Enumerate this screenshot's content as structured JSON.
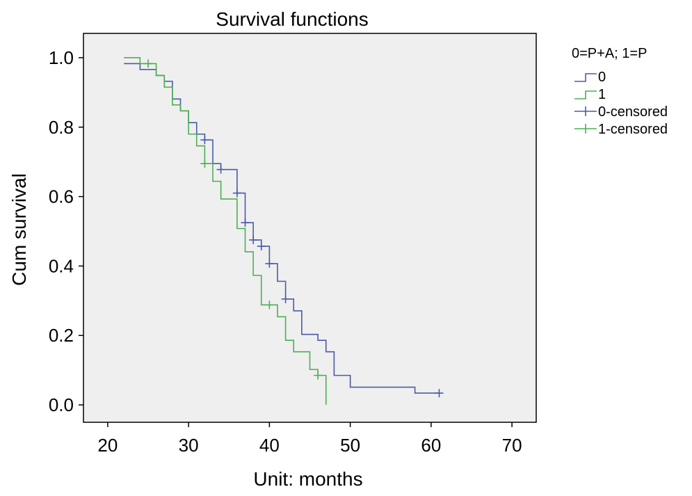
{
  "chart_data": {
    "type": "line",
    "subtype": "kaplan-meier step",
    "title": "Survival functions",
    "xlabel": "Unit: months",
    "ylabel": "Cum survival",
    "xlim": [
      17,
      73
    ],
    "ylim": [
      -0.05,
      1.07
    ],
    "xticks": [
      20,
      30,
      40,
      50,
      60,
      70
    ],
    "xtick_labels": [
      "20",
      "30",
      "40",
      "50",
      "60",
      "70"
    ],
    "yticks": [
      0.0,
      0.2,
      0.4,
      0.6,
      0.8,
      1.0
    ],
    "ytick_labels": [
      "0.0",
      "0.2",
      "0.4",
      "0.6",
      "0.8",
      "1.0"
    ],
    "grid": false,
    "plot_background": "#efefef",
    "legend": {
      "title": "0=P+A; 1=P",
      "placement": "right, outside",
      "entries": [
        "0",
        "1",
        "0-censored",
        "1-censored"
      ]
    },
    "series": [
      {
        "name": "0",
        "color": "#4a5aa8",
        "steps": [
          [
            22,
            0.983
          ],
          [
            24,
            0.966
          ],
          [
            26,
            0.949
          ],
          [
            27,
            0.932
          ],
          [
            28,
            0.881
          ],
          [
            29,
            0.847
          ],
          [
            30,
            0.813
          ],
          [
            31,
            0.78
          ],
          [
            32,
            0.763
          ],
          [
            33,
            0.695
          ],
          [
            34,
            0.678
          ],
          [
            36,
            0.61
          ],
          [
            37,
            0.525
          ],
          [
            38,
            0.475
          ],
          [
            39,
            0.457
          ],
          [
            40,
            0.407
          ],
          [
            41,
            0.356
          ],
          [
            42,
            0.305
          ],
          [
            43,
            0.271
          ],
          [
            44,
            0.203
          ],
          [
            46,
            0.186
          ],
          [
            47,
            0.153
          ],
          [
            48,
            0.085
          ],
          [
            50,
            0.051
          ],
          [
            58,
            0.034
          ],
          [
            61,
            0.034
          ]
        ],
        "censored": [
          [
            32,
            0.763
          ],
          [
            34,
            0.678
          ],
          [
            36,
            0.61
          ],
          [
            37,
            0.525
          ],
          [
            38,
            0.475
          ],
          [
            39,
            0.457
          ],
          [
            40,
            0.407
          ],
          [
            42,
            0.305
          ],
          [
            61,
            0.034
          ]
        ]
      },
      {
        "name": "1",
        "color": "#4caf50",
        "steps": [
          [
            22,
            1.0
          ],
          [
            24,
            0.983
          ],
          [
            26,
            0.949
          ],
          [
            27,
            0.915
          ],
          [
            28,
            0.864
          ],
          [
            29,
            0.847
          ],
          [
            30,
            0.78
          ],
          [
            31,
            0.746
          ],
          [
            32,
            0.695
          ],
          [
            33,
            0.644
          ],
          [
            34,
            0.593
          ],
          [
            36,
            0.508
          ],
          [
            37,
            0.441
          ],
          [
            38,
            0.373
          ],
          [
            39,
            0.288
          ],
          [
            41,
            0.254
          ],
          [
            42,
            0.186
          ],
          [
            43,
            0.153
          ],
          [
            45,
            0.102
          ],
          [
            46,
            0.085
          ],
          [
            47,
            0.0
          ]
        ],
        "censored": [
          [
            25,
            0.983
          ],
          [
            32,
            0.695
          ],
          [
            40,
            0.288
          ],
          [
            46,
            0.085
          ]
        ]
      }
    ]
  }
}
